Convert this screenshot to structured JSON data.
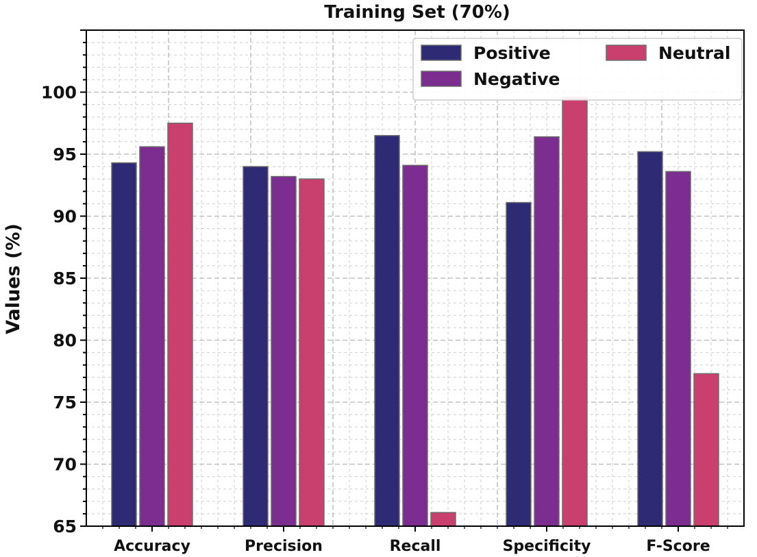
{
  "chart_data": {
    "type": "bar",
    "title": "Training Set (70%)",
    "xlabel": "",
    "ylabel": "Values (%)",
    "categories": [
      "Accuracy",
      "Precision",
      "Recall",
      "Specificity",
      "F-Score"
    ],
    "series": [
      {
        "name": "Positive",
        "color": "#2e2b74",
        "values": [
          94.3,
          94.0,
          96.5,
          91.1,
          95.2
        ]
      },
      {
        "name": "Negative",
        "color": "#7b2d90",
        "values": [
          95.6,
          93.2,
          94.1,
          96.4,
          93.6
        ]
      },
      {
        "name": "Neutral",
        "color": "#c93f6e",
        "values": [
          97.5,
          93.0,
          66.1,
          99.6,
          77.3
        ]
      }
    ],
    "ylim": [
      65,
      105
    ],
    "yticks": [
      65,
      70,
      75,
      80,
      85,
      90,
      95,
      100
    ],
    "grid": true,
    "legend_position": "top-right",
    "bar_edge_color": "#6d6d6d"
  }
}
